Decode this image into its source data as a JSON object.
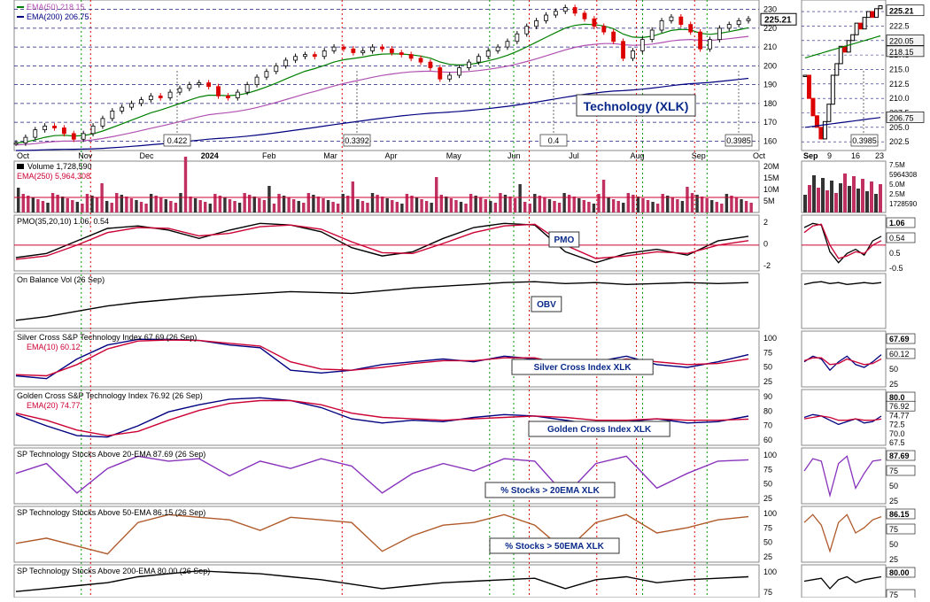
{
  "chart_data": {
    "type": "line",
    "title": "Technology (XLK)",
    "price_panel": {
      "legend": [
        {
          "label": "EMA(50) 218.15",
          "color": "#008000"
        },
        {
          "label": "EMA(200) 206.75",
          "color": "#000080"
        }
      ],
      "last_price": "225.21",
      "y_ticks": [
        "230",
        "220",
        "210",
        "200",
        "190",
        "180",
        "170",
        "160"
      ],
      "ylim": [
        155,
        235
      ],
      "callouts": [
        "0.422",
        "0.3392",
        "0.4",
        "0.3985"
      ],
      "x_labels": [
        "Oct",
        "Nov",
        "Dec",
        "2024",
        "Feb",
        "Mar",
        "Apr",
        "May",
        "Jun",
        "Jul",
        "Aug",
        "Sep",
        "Oct"
      ],
      "close": [
        159,
        162,
        166,
        168,
        167,
        164,
        161,
        164,
        168,
        172,
        176,
        178,
        180,
        182,
        184,
        183,
        186,
        188,
        190,
        191,
        189,
        184,
        183,
        186,
        190,
        194,
        197,
        200,
        203,
        205,
        206,
        205,
        208,
        210,
        209,
        207,
        208,
        210,
        209,
        207,
        206,
        204,
        202,
        199,
        193,
        195,
        199,
        202,
        205,
        208,
        210,
        213,
        217,
        221,
        224,
        227,
        229,
        231,
        228,
        225,
        221,
        218,
        213,
        204,
        208,
        214,
        219,
        224,
        226,
        222,
        218,
        209,
        214,
        220,
        222,
        224,
        225
      ]
    },
    "zoom_panel": {
      "x_labels": [
        "Sep",
        "9",
        "16",
        "23"
      ],
      "y_ticks": [
        "225.0",
        "222.5",
        "220.0",
        "217.5",
        "215.0",
        "212.5",
        "210.0",
        "207.5",
        "205.0",
        "202.5"
      ],
      "ylim": [
        201,
        227
      ],
      "value_labels": [
        "225.21",
        "220.05",
        "218.15",
        "206.75"
      ],
      "callout": "0.3985"
    },
    "volume_panel": {
      "legend": [
        {
          "label": "Volume 1,728,590",
          "color": "#000000"
        },
        {
          "label": "EMA(250) 5,964,308",
          "color": "#cc0033"
        }
      ],
      "y_ticks": [
        "20M",
        "15M",
        "10M",
        "5M"
      ],
      "value_labels": [
        "7.5M",
        "5964308",
        "5.0M",
        "2.5M",
        "1728590"
      ]
    },
    "indicator_panels": [
      {
        "legend": "PMO(35,20,10) 1.06, 0.54",
        "callout": "PMO",
        "y_ticks": [
          "2",
          "0",
          "-2"
        ],
        "zoom_labels": [
          "1.06",
          "0.54",
          "0.5",
          "-0.5"
        ],
        "series": [
          {
            "name": "PMO",
            "color": "#000000",
            "values": [
              -1.5,
              -1,
              0.5,
              2,
              2.3,
              1.8,
              0.8,
              1.8,
              2.6,
              2.4,
              1.6,
              -0.3,
              -1.3,
              -0.8,
              0.8,
              2.1,
              2.6,
              2.4,
              -0.8,
              -2.1,
              -1,
              -0.5,
              -1.2,
              0.5,
              1.06
            ]
          },
          {
            "name": "Signal",
            "color": "#cc0033",
            "values": [
              -1.7,
              -1.3,
              0,
              1.5,
              2.1,
              2,
              1.1,
              1.4,
              2.2,
              2.4,
              1.9,
              0.4,
              -0.9,
              -1,
              0.2,
              1.5,
              2.3,
              2.5,
              0,
              -1.6,
              -1.3,
              -0.8,
              -1,
              0,
              0.54
            ]
          }
        ]
      },
      {
        "legend": "On Balance Vol (26 Sep)",
        "callout": "OBV",
        "y_ticks": [],
        "zoom_labels": [],
        "series": [
          {
            "name": "OBV",
            "color": "#000000",
            "values": [
              10,
              14,
              20,
              26,
              30,
              33,
              36,
              38,
              40,
              42,
              41,
              40,
              43,
              46,
              48,
              50,
              52,
              53,
              51,
              52,
              50,
              51,
              52,
              51,
              52
            ]
          }
        ]
      },
      {
        "legend": "Silver Cross S&P Technology Index 67.69 (26 Sep)",
        "ema": "EMA(10) 60.12",
        "callout": "Silver Cross Index XLK",
        "y_ticks": [
          "100",
          "75",
          "50",
          "25"
        ],
        "zoom_labels": [
          "67.69",
          "60.12",
          "50",
          "25"
        ],
        "series": [
          {
            "name": "Silver Cross",
            "color": "#000080",
            "values": [
              30,
              25,
              60,
              85,
              95,
              95,
              93,
              85,
              80,
              40,
              35,
              40,
              50,
              55,
              60,
              55,
              65,
              60,
              40,
              55,
              65,
              50,
              45,
              55,
              67.69
            ]
          },
          {
            "name": "EMA(10)",
            "color": "#cc0033",
            "values": [
              32,
              30,
              50,
              78,
              92,
              94,
              93,
              88,
              83,
              55,
              42,
              40,
              45,
              52,
              57,
              57,
              62,
              62,
              50,
              52,
              60,
              55,
              50,
              52,
              60.12
            ]
          }
        ]
      },
      {
        "legend": "Golden Cross S&P Technology Index 76.92 (26 Sep)",
        "ema": "EMA(20) 74.77",
        "callout": "Golden Cross Index XLK",
        "y_ticks": [
          "90",
          "80",
          "70",
          "60"
        ],
        "zoom_labels": [
          "80.0",
          "76.92",
          "74.77",
          "72.5",
          "70.0",
          "67.5"
        ],
        "series": [
          {
            "name": "Golden Cross",
            "color": "#000080",
            "values": [
              78,
              70,
              63,
              62,
              70,
              80,
              85,
              89,
              90,
              88,
              83,
              75,
              72,
              74,
              73,
              76,
              78,
              77,
              74,
              71,
              73,
              75,
              72,
              73,
              76.92
            ]
          },
          {
            "name": "EMA(20)",
            "color": "#cc0033",
            "values": [
              79,
              74,
              67,
              63,
              66,
              74,
              81,
              86,
              88,
              88,
              85,
              79,
              76,
              75,
              74,
              75,
              76,
              77,
              76,
              74,
              74,
              75,
              74,
              74,
              74.77
            ]
          }
        ]
      },
      {
        "legend": "SP Technology Stocks Above 20-EMA 87.69 (26 Sep)",
        "callout": "% Stocks > 20EMA XLK",
        "y_ticks": [
          "100",
          "75",
          "50",
          "25"
        ],
        "zoom_labels": [
          "87.69",
          "75",
          "50",
          "25"
        ],
        "series": [
          {
            "name": "% > 20EMA",
            "color": "#8833bb",
            "values": [
              60,
              80,
              20,
              70,
              95,
              85,
              90,
              55,
              85,
              70,
              90,
              75,
              20,
              60,
              80,
              65,
              90,
              85,
              15,
              80,
              95,
              30,
              60,
              85,
              87.69
            ]
          }
        ]
      },
      {
        "legend": "SP Technology Stocks Above 50-EMA 86.15 (26 Sep)",
        "callout": "% Stocks > 50EMA XLK",
        "y_ticks": [
          "100",
          "75",
          "50",
          "25"
        ],
        "zoom_labels": [
          "86.15",
          "75",
          "50",
          "25"
        ],
        "series": [
          {
            "name": "% > 50EMA",
            "color": "#b05a2a",
            "values": [
              35,
              45,
              30,
              15,
              75,
              90,
              85,
              80,
              60,
              85,
              80,
              75,
              20,
              50,
              70,
              75,
              90,
              70,
              20,
              75,
              90,
              55,
              65,
              80,
              86.15
            ]
          }
        ]
      },
      {
        "legend": "SP Technology Stocks Above 200-EMA 80.00 (26 Sep)",
        "callout": "",
        "y_ticks": [
          "100",
          "75"
        ],
        "zoom_labels": [
          "80.00",
          "75"
        ],
        "series": [
          {
            "name": "% > 200EMA",
            "color": "#000000",
            "values": [
              70,
              72,
              74,
              76,
              80,
              82,
              84,
              83,
              82,
              80,
              78,
              75,
              72,
              74,
              76,
              77,
              78,
              79,
              72,
              78,
              80,
              76,
              78,
              79,
              80
            ]
          }
        ]
      }
    ],
    "signal_lines": {
      "red": [
        "Nov",
        "Mar",
        "Jun",
        "Jul",
        "Aug",
        "Sep"
      ],
      "green": [
        "Nov",
        "May",
        "Jun",
        "Aug",
        "Sep"
      ]
    }
  }
}
